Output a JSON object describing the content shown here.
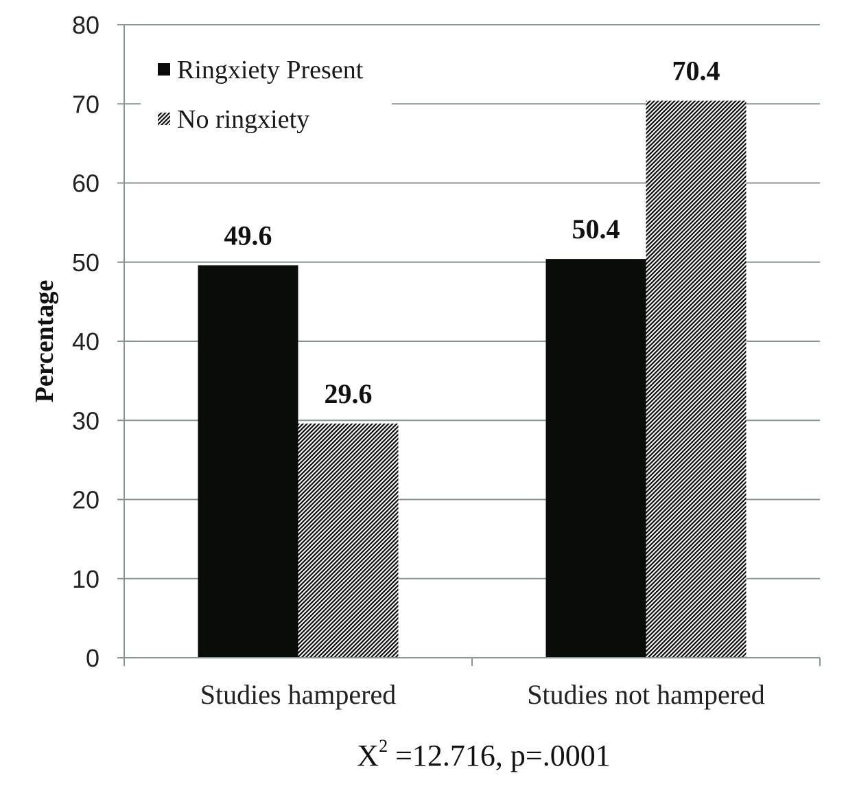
{
  "chart_data": {
    "type": "bar",
    "title": "",
    "categories": [
      "Studies hampered",
      "Studies not hampered"
    ],
    "series": [
      {
        "name": "Ringxiety Present",
        "values": [
          49.6,
          50.4
        ],
        "fill": "solid",
        "color": "#0a0c0a"
      },
      {
        "name": "No ringxiety",
        "values": [
          29.6,
          70.4
        ],
        "fill": "diagonal-hatch",
        "color": "#0a0c0a"
      }
    ],
    "data_labels": [
      [
        "49.6",
        "50.4"
      ],
      [
        "29.6",
        "70.4"
      ]
    ],
    "xlabel": "",
    "ylabel": "Percentage",
    "ylim": [
      0,
      80
    ],
    "yticks": [
      0,
      10,
      20,
      30,
      40,
      50,
      60,
      70,
      80
    ],
    "grid": true,
    "gridline_color": "#8a9595",
    "legend_position": "top-left",
    "annotation": {
      "text": "X",
      "superscript": "2",
      "rest": " =12.716, p=.0001"
    }
  }
}
